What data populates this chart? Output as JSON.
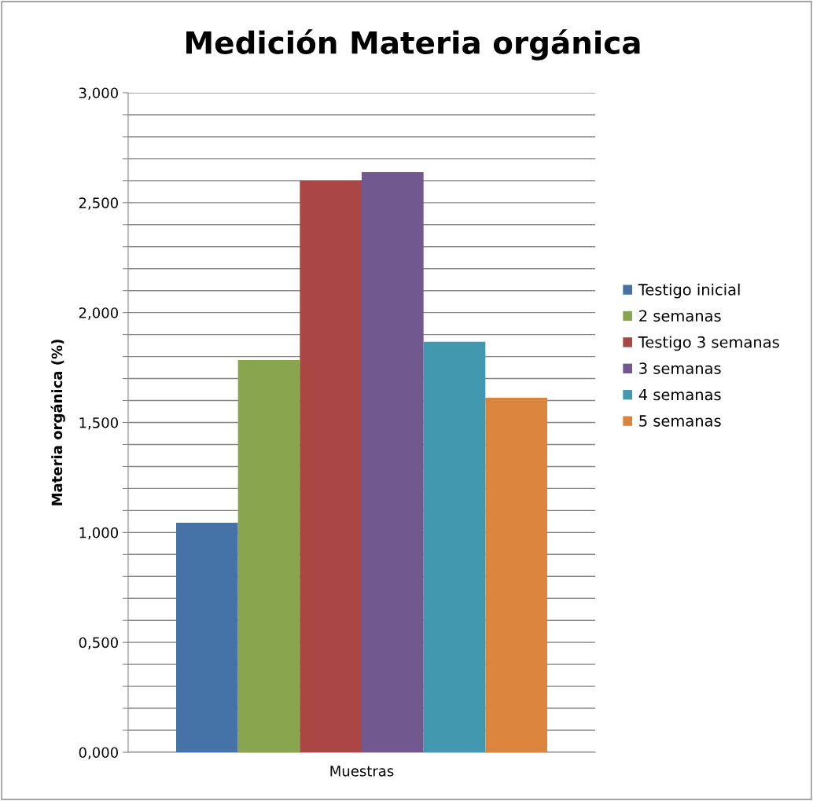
{
  "chart_data": {
    "type": "bar",
    "title": "Medición Materia orgánica",
    "ylabel": "Materia orgánica (%)",
    "categories": [
      "Muestras"
    ],
    "series": [
      {
        "name": "Testigo inicial",
        "color": "#4572a7",
        "values": [
          1.044
        ]
      },
      {
        "name": "2 semanas",
        "color": "#89a54e",
        "values": [
          1.784
        ]
      },
      {
        "name": "Testigo 3 semanas",
        "color": "#aa4643",
        "values": [
          2.6
        ]
      },
      {
        "name": "3 semanas",
        "color": "#71588f",
        "values": [
          2.639
        ]
      },
      {
        "name": "4 semanas",
        "color": "#4198af",
        "values": [
          1.867
        ]
      },
      {
        "name": "5 semanas",
        "color": "#db843d",
        "values": [
          1.613
        ]
      }
    ],
    "ylim": [
      0,
      3
    ],
    "yticks": [
      {
        "value": 0,
        "label": "0,000"
      },
      {
        "value": 0.1,
        "label": null
      },
      {
        "value": 0.2,
        "label": null
      },
      {
        "value": 0.3,
        "label": null
      },
      {
        "value": 0.4,
        "label": null
      },
      {
        "value": 0.5,
        "label": "0,500"
      },
      {
        "value": 0.6,
        "label": null
      },
      {
        "value": 0.7,
        "label": null
      },
      {
        "value": 0.8,
        "label": null
      },
      {
        "value": 0.9,
        "label": null
      },
      {
        "value": 1.0,
        "label": "1,000"
      },
      {
        "value": 1.1,
        "label": null
      },
      {
        "value": 1.2,
        "label": null
      },
      {
        "value": 1.3,
        "label": null
      },
      {
        "value": 1.4,
        "label": null
      },
      {
        "value": 1.5,
        "label": "1,500"
      },
      {
        "value": 1.6,
        "label": null
      },
      {
        "value": 1.7,
        "label": null
      },
      {
        "value": 1.8,
        "label": null
      },
      {
        "value": 1.9,
        "label": null
      },
      {
        "value": 2.0,
        "label": "2,000"
      },
      {
        "value": 2.1,
        "label": null
      },
      {
        "value": 2.2,
        "label": null
      },
      {
        "value": 2.3,
        "label": null
      },
      {
        "value": 2.4,
        "label": null
      },
      {
        "value": 2.5,
        "label": "2,500"
      },
      {
        "value": 2.6,
        "label": null
      },
      {
        "value": 2.7,
        "label": null
      },
      {
        "value": 2.8,
        "label": null
      },
      {
        "value": 2.9,
        "label": null
      },
      {
        "value": 3.0,
        "label": "3,000"
      }
    ],
    "grid": "y",
    "legend": "right"
  }
}
